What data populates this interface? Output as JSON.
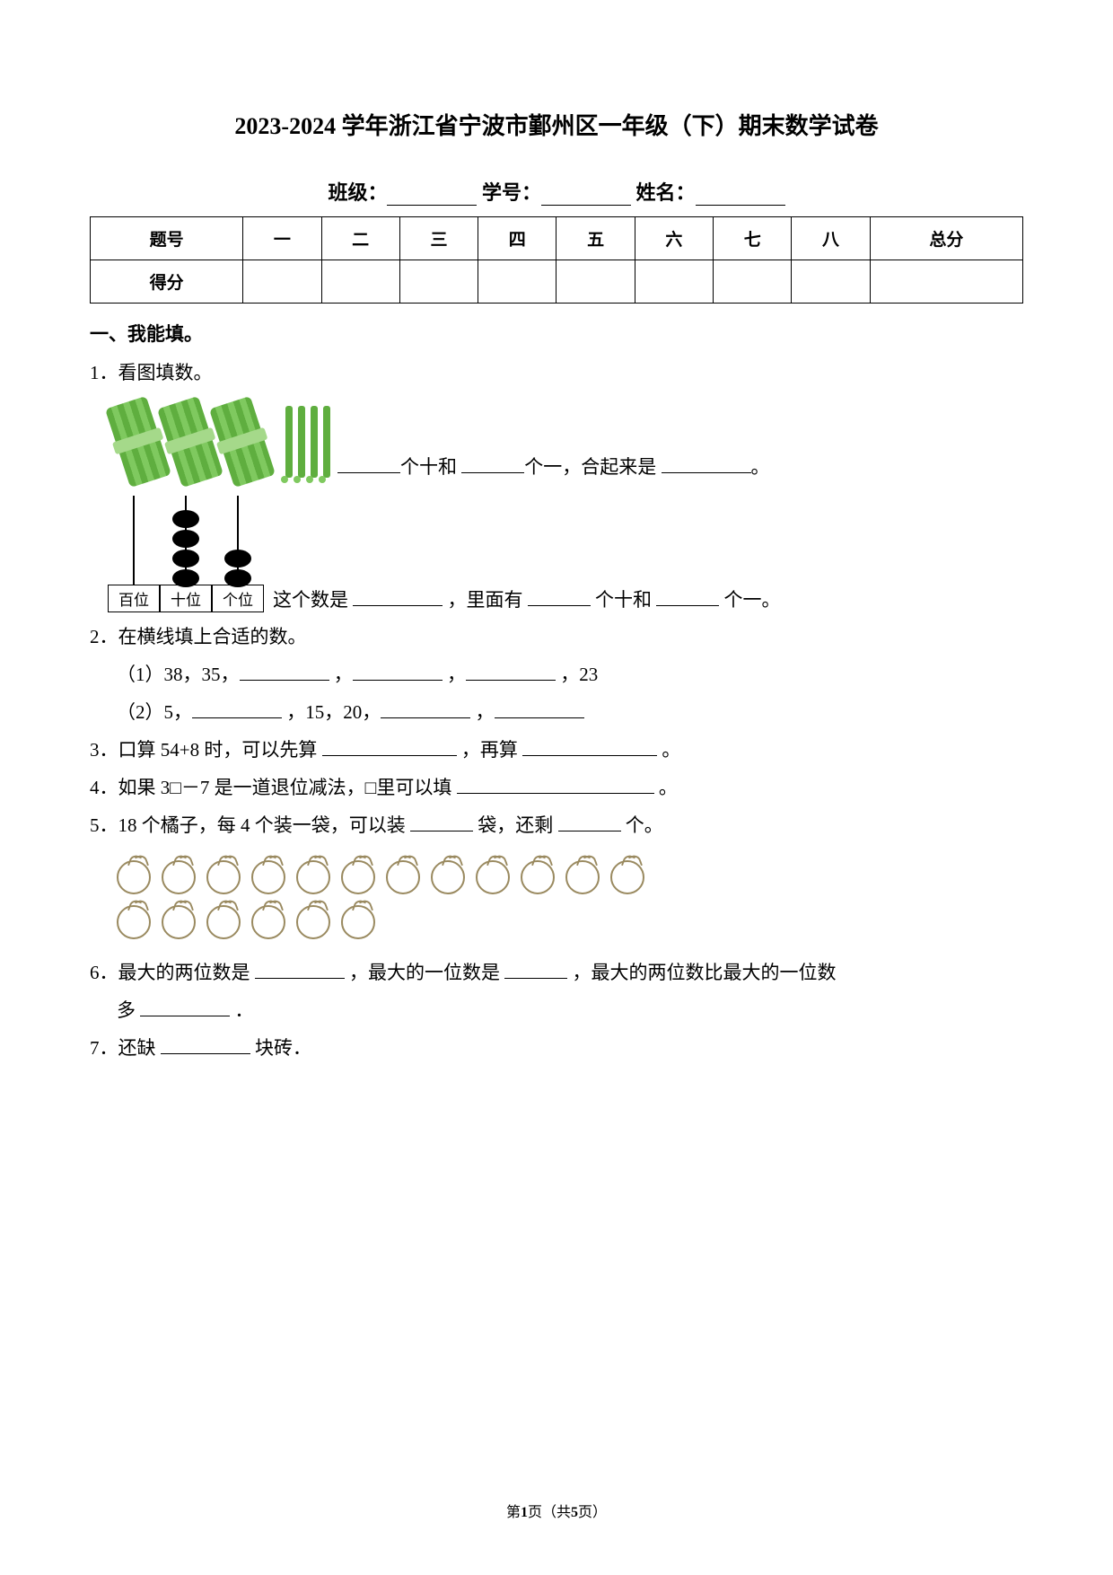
{
  "title": "2023-2024 学年浙江省宁波市鄞州区一年级（下）期末数学试卷",
  "info": {
    "class_label": "班级：",
    "id_label": "学号：",
    "name_label": "姓名："
  },
  "score_table": {
    "row1": [
      "题号",
      "一",
      "二",
      "三",
      "四",
      "五",
      "六",
      "七",
      "八",
      "总分"
    ],
    "row2_label": "得分"
  },
  "section1": "一、我能填。",
  "q1": {
    "num": "1．看图填数。",
    "bundles": 3,
    "loose_sticks": 4,
    "line1_a": "个十和 ",
    "line1_b": "个一，合起来是 ",
    "line1_c": "。",
    "abacus": {
      "rods": [
        {
          "label": "百位",
          "beads": 0
        },
        {
          "label": "十位",
          "beads": 4
        },
        {
          "label": "个位",
          "beads": 2
        }
      ]
    },
    "line2_a": "这个数是 ",
    "line2_b": "，里面有 ",
    "line2_c": "个十和 ",
    "line2_d": "个一。"
  },
  "q2": {
    "num": "2．在横线填上合适的数。",
    "sub1_a": "（1）38，35，",
    "sub1_b": "，",
    "sub1_c": "，",
    "sub1_d": "，23",
    "sub2_a": "（2）5，",
    "sub2_b": "，15，20，",
    "sub2_c": "，"
  },
  "q3": {
    "a": "3．口算 54+8 时，可以先算 ",
    "b": "，再算 ",
    "c": "。"
  },
  "q4": {
    "a": "4．如果 3□－7 是一道退位减法，□里可以填 ",
    "b": "。"
  },
  "q5": {
    "a": "5．18 个橘子，每 4 个装一袋，可以装 ",
    "b": "袋，还剩 ",
    "c": "个。",
    "row1": 12,
    "row2": 6
  },
  "q6": {
    "a": "6．最大的两位数是 ",
    "b": "，最大的一位数是 ",
    "c": "，最大的两位数比最大的一位数",
    "d": "多 ",
    "e": "．"
  },
  "q7": {
    "a": "7．还缺 ",
    "b": "块砖．"
  },
  "footer": {
    "a": "第",
    "b": "1",
    "c": "页（共",
    "d": "5",
    "e": "页）"
  }
}
